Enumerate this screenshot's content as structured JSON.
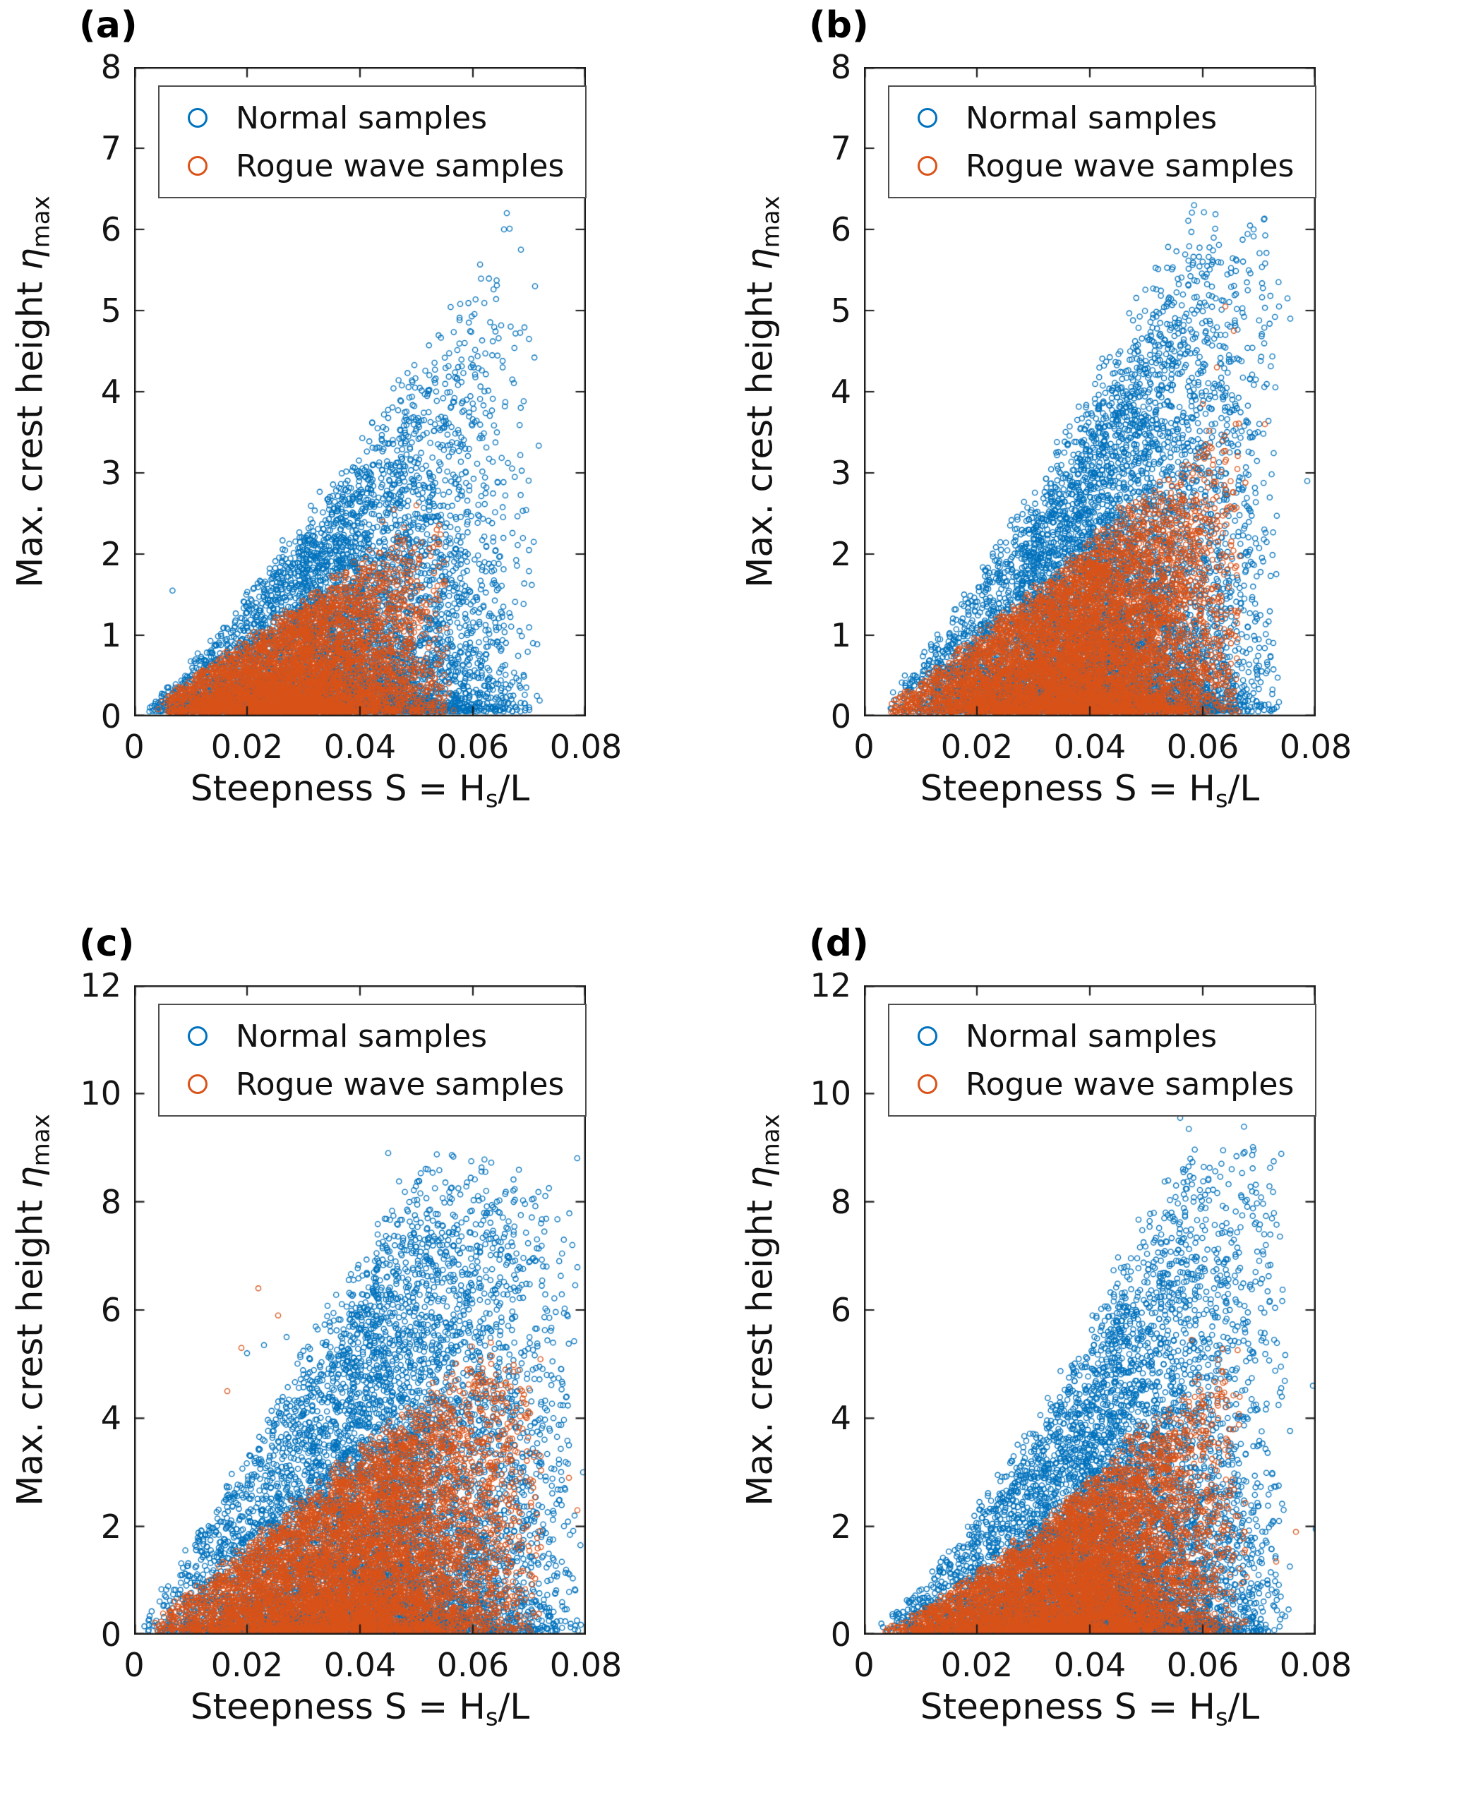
{
  "chart_data": {
    "type": "scatter",
    "xlabel": "Steepness S = Hs/L",
    "ylabel": "Max. crest height ηmax",
    "xlabel_parts": {
      "text": "Steepness S = H",
      "subscript": "s",
      "suffix": "/L"
    },
    "ylabel_parts": {
      "text": "Max. crest height ",
      "symbol": "η",
      "subscript": "max"
    },
    "legend": [
      "Normal samples",
      "Rogue wave samples"
    ],
    "legend_position": "top-left",
    "grid": false,
    "colors": {
      "normal": "#0072BD",
      "rogue": "#D95319"
    },
    "panels": [
      {
        "panel_label": "(a)",
        "xlim": [
          0,
          0.08
        ],
        "ylim": [
          0,
          8
        ],
        "xticks": [
          0,
          0.02,
          0.04,
          0.06,
          0.08
        ],
        "yticks": [
          0,
          1,
          2,
          3,
          4,
          5,
          6,
          7,
          8
        ],
        "series": [
          {
            "name": "Normal samples",
            "color": "#0072BD",
            "n": 6000,
            "seed": 101,
            "x_min": 0.002,
            "x_max": 0.072,
            "x_skew": 1.0,
            "env_A": 143,
            "env_p": 1.15,
            "env_cap": 6.3,
            "y_base": 0.06,
            "conc": 2.0,
            "extra_points": [
              [
                0.066,
                6.2
              ],
              [
                0.0655,
                6.0
              ],
              [
                0.0068,
                1.55
              ],
              [
                0.071,
                5.3
              ],
              [
                0.0685,
                5.75
              ]
            ]
          },
          {
            "name": "Rogue wave samples",
            "color": "#D95319",
            "n": 4200,
            "seed": 202,
            "x_min": 0.004,
            "x_max": 0.057,
            "x_skew": 1.0,
            "env_A": 50,
            "env_p": 1.0,
            "env_cap": 2.9,
            "y_base": 0.05,
            "conc": 1.7,
            "extra_points": [
              [
                0.046,
                2.55
              ],
              [
                0.05,
                2.6
              ],
              [
                0.044,
                2.4
              ]
            ]
          }
        ]
      },
      {
        "panel_label": "(b)",
        "xlim": [
          0,
          0.08
        ],
        "ylim": [
          0,
          8
        ],
        "xticks": [
          0,
          0.02,
          0.04,
          0.06,
          0.08
        ],
        "yticks": [
          0,
          1,
          2,
          3,
          4,
          5,
          6,
          7,
          8
        ],
        "series": [
          {
            "name": "Normal samples",
            "color": "#0072BD",
            "n": 7500,
            "seed": 303,
            "x_min": 0.003,
            "x_max": 0.074,
            "x_skew": 0.85,
            "env_A": 198,
            "env_p": 1.2,
            "env_cap": 6.6,
            "y_base": 0.06,
            "conc": 1.9,
            "extra_points": [
              [
                0.0785,
                2.9
              ],
              [
                0.075,
                5.15
              ],
              [
                0.0755,
                4.9
              ],
              [
                0.069,
                6.0
              ],
              [
                0.057,
                6.55
              ],
              [
                0.0735,
                5.05
              ]
            ]
          },
          {
            "name": "Rogue wave samples",
            "color": "#D95319",
            "n": 6000,
            "seed": 404,
            "x_min": 0.003,
            "x_max": 0.068,
            "x_skew": 0.85,
            "env_A": 78,
            "env_p": 1.1,
            "env_cap": 3.9,
            "y_base": 0.05,
            "conc": 1.5,
            "extra_points": [
              [
                0.064,
                5.05
              ],
              [
                0.0655,
                4.75
              ],
              [
                0.0625,
                4.3
              ],
              [
                0.071,
                3.6
              ],
              [
                0.06,
                3.85
              ]
            ]
          }
        ]
      },
      {
        "panel_label": "(c)",
        "xlim": [
          0,
          0.08
        ],
        "ylim": [
          0,
          12
        ],
        "xticks": [
          0,
          0.02,
          0.04,
          0.06,
          0.08
        ],
        "yticks": [
          0,
          2,
          4,
          6,
          8,
          10,
          12
        ],
        "series": [
          {
            "name": "Normal samples",
            "color": "#0072BD",
            "n": 7500,
            "seed": 505,
            "x_min": 0.001,
            "x_max": 0.08,
            "x_skew": 0.9,
            "env_A": 180,
            "env_p": 1.0,
            "env_cap": 9.0,
            "y_base": 0.06,
            "conc": 1.8,
            "extra_points": [
              [
                0.045,
                8.9
              ],
              [
                0.052,
                8.6
              ],
              [
                0.02,
                5.2
              ],
              [
                0.023,
                5.35
              ],
              [
                0.027,
                5.5
              ],
              [
                0.0795,
                3.0
              ],
              [
                0.078,
                2.2
              ],
              [
                0.0765,
                1.2
              ]
            ]
          },
          {
            "name": "Rogue wave samples",
            "color": "#D95319",
            "n": 6000,
            "seed": 606,
            "x_min": 0.002,
            "x_max": 0.073,
            "x_skew": 0.9,
            "env_A": 90,
            "env_p": 1.0,
            "env_cap": 5.6,
            "y_base": 0.05,
            "conc": 1.4,
            "extra_points": [
              [
                0.022,
                6.4
              ],
              [
                0.0255,
                5.9
              ],
              [
                0.019,
                5.3
              ],
              [
                0.0165,
                4.5
              ],
              [
                0.077,
                2.9
              ],
              [
                0.0785,
                2.3
              ],
              [
                0.072,
                3.3
              ]
            ]
          }
        ]
      },
      {
        "panel_label": "(d)",
        "xlim": [
          0,
          0.08
        ],
        "ylim": [
          0,
          12
        ],
        "xticks": [
          0,
          0.02,
          0.04,
          0.06,
          0.08
        ],
        "yticks": [
          0,
          2,
          4,
          6,
          8,
          10,
          12
        ],
        "series": [
          {
            "name": "Normal samples",
            "color": "#0072BD",
            "n": 7000,
            "seed": 707,
            "x_min": 0.002,
            "x_max": 0.076,
            "x_skew": 0.85,
            "env_A": 394,
            "env_p": 1.3,
            "env_cap": 9.6,
            "y_base": 0.06,
            "conc": 1.9,
            "extra_points": [
              [
                0.0795,
                4.6
              ],
              [
                0.08,
                1.95
              ],
              [
                0.074,
                4.4
              ],
              [
                0.056,
                9.55
              ],
              [
                0.0735,
                2.1
              ]
            ]
          },
          {
            "name": "Rogue wave samples",
            "color": "#D95319",
            "n": 5500,
            "seed": 808,
            "x_min": 0.003,
            "x_max": 0.068,
            "x_skew": 0.85,
            "env_A": 200,
            "env_p": 1.3,
            "env_cap": 5.5,
            "y_base": 0.05,
            "conc": 1.5,
            "extra_points": [
              [
                0.073,
                1.35
              ],
              [
                0.0765,
                1.9
              ],
              [
                0.058,
                5.45
              ]
            ]
          }
        ]
      }
    ]
  }
}
